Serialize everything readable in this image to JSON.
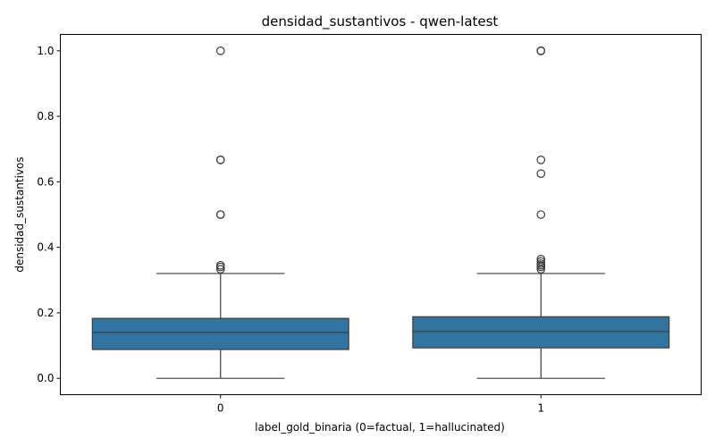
{
  "chart_data": {
    "type": "box",
    "title": "densidad_sustantivos - qwen-latest",
    "xlabel": "label_gold_binaria (0=factual, 1=hallucinated)",
    "ylabel": "densidad_sustantivos",
    "categories": [
      "0",
      "1"
    ],
    "ylim": [
      -0.05,
      1.05
    ],
    "yticks": [
      0.0,
      0.2,
      0.4,
      0.6,
      0.8,
      1.0
    ],
    "ytick_labels": [
      "0.0",
      "0.2",
      "0.4",
      "0.6",
      "0.8",
      "1.0"
    ],
    "grid": false,
    "box_color": "#3274a1",
    "line_color": "#3d3d3d",
    "boxes": [
      {
        "category": "0",
        "whisker_low": 0.0,
        "q1": 0.088,
        "median": 0.14,
        "q3": 0.183,
        "whisker_high": 0.32,
        "outliers": [
          0.333,
          0.34,
          0.345,
          0.5,
          0.5,
          0.667,
          0.667,
          1.0
        ]
      },
      {
        "category": "1",
        "whisker_low": 0.0,
        "q1": 0.093,
        "median": 0.143,
        "q3": 0.188,
        "whisker_high": 0.32,
        "outliers": [
          0.333,
          0.34,
          0.345,
          0.35,
          0.357,
          0.364,
          0.5,
          0.625,
          0.667,
          1.0,
          1.0,
          1.0
        ]
      }
    ]
  }
}
